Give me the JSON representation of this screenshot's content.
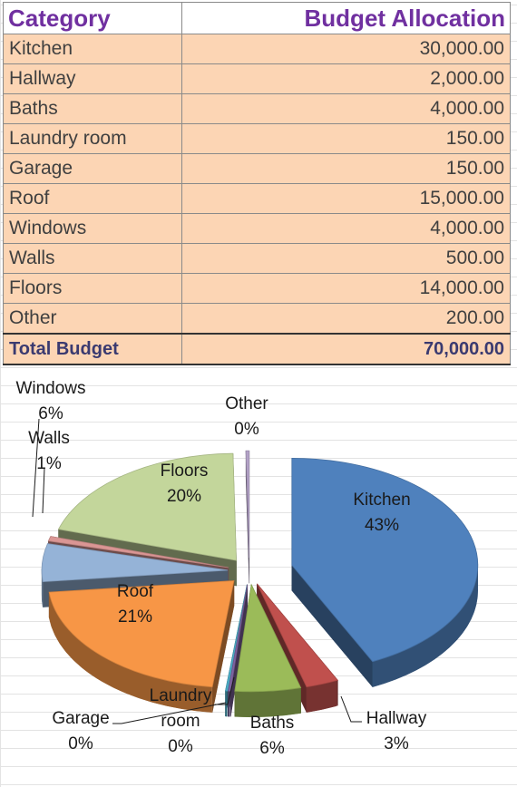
{
  "table": {
    "headers": [
      "Category",
      "Budget Allocation"
    ],
    "rows": [
      {
        "category": "Kitchen",
        "amount": "30,000.00"
      },
      {
        "category": "Hallway",
        "amount": "2,000.00"
      },
      {
        "category": "Baths",
        "amount": "4,000.00"
      },
      {
        "category": "Laundry room",
        "amount": "150.00"
      },
      {
        "category": "Garage",
        "amount": "150.00"
      },
      {
        "category": "Roof",
        "amount": "15,000.00"
      },
      {
        "category": "Windows",
        "amount": "4,000.00"
      },
      {
        "category": "Walls",
        "amount": "500.00"
      },
      {
        "category": "Floors",
        "amount": "14,000.00"
      },
      {
        "category": "Other",
        "amount": "200.00"
      }
    ],
    "total": {
      "label": "Total Budget",
      "amount": "70,000.00"
    }
  },
  "colors": {
    "header_text": "#7030a0",
    "row_fill": "#fcd5b4",
    "kitchen": "#4f81bd",
    "hallway": "#c0504d",
    "baths": "#9bbb59",
    "laundry": "#8064a2",
    "garage": "#4bacc6",
    "roof": "#f79646",
    "windows": "#95b3d7",
    "walls": "#da9694",
    "floors": "#c3d69b",
    "other": "#b3a2c7"
  },
  "chart_data": {
    "type": "pie",
    "exploded": true,
    "three_d": true,
    "title": "",
    "slices": [
      {
        "label": "Kitchen",
        "value": 30000,
        "pct_label": "43%",
        "color": "#4f81bd"
      },
      {
        "label": "Hallway",
        "value": 2000,
        "pct_label": "3%",
        "color": "#c0504d"
      },
      {
        "label": "Baths",
        "value": 4000,
        "pct_label": "6%",
        "color": "#9bbb59"
      },
      {
        "label": "Laundry room",
        "value": 150,
        "pct_label": "0%",
        "color": "#8064a2"
      },
      {
        "label": "Garage",
        "value": 150,
        "pct_label": "0%",
        "color": "#4bacc6"
      },
      {
        "label": "Roof",
        "value": 15000,
        "pct_label": "21%",
        "color": "#f79646"
      },
      {
        "label": "Windows",
        "value": 4000,
        "pct_label": "6%",
        "color": "#95b3d7"
      },
      {
        "label": "Walls",
        "value": 500,
        "pct_label": "1%",
        "color": "#da9694"
      },
      {
        "label": "Floors",
        "value": 14000,
        "pct_label": "20%",
        "color": "#c3d69b"
      },
      {
        "label": "Other",
        "value": 200,
        "pct_label": "0%",
        "color": "#b3a2c7"
      }
    ]
  }
}
